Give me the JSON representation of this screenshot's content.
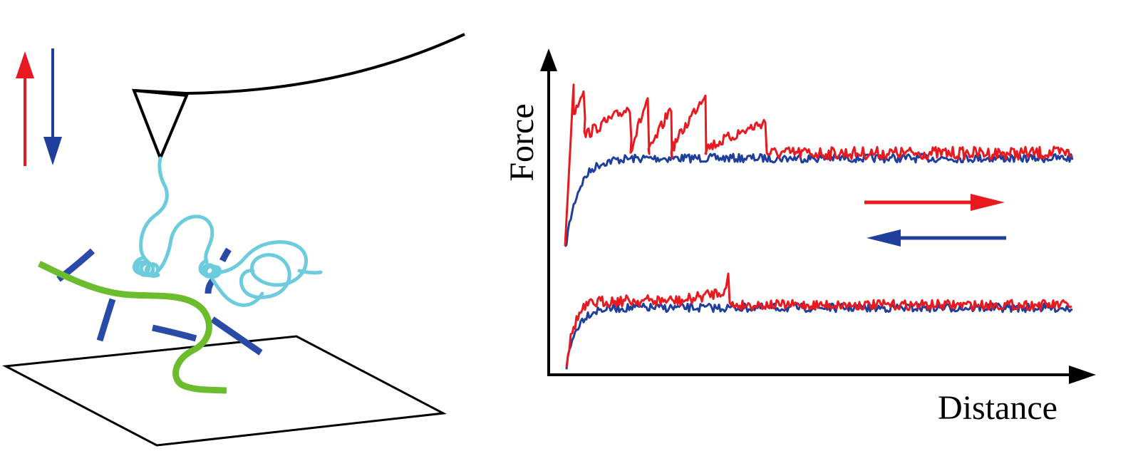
{
  "figure": {
    "yaxis_label": "Force",
    "xaxis_label": "Distance"
  },
  "colors": {
    "approach": "#e8191f",
    "retract": "#1f3f9c",
    "polymer": "#6ccbdc",
    "strand_green": "#6cbd2e",
    "strand_blue": "#2a4aa8",
    "outline": "#000000"
  },
  "icons": {
    "up_arrow": "red-up-arrow-icon",
    "down_arrow": "blue-down-arrow-icon",
    "right_arrow": "red-right-arrow-icon",
    "left_arrow": "blue-left-arrow-icon"
  }
}
